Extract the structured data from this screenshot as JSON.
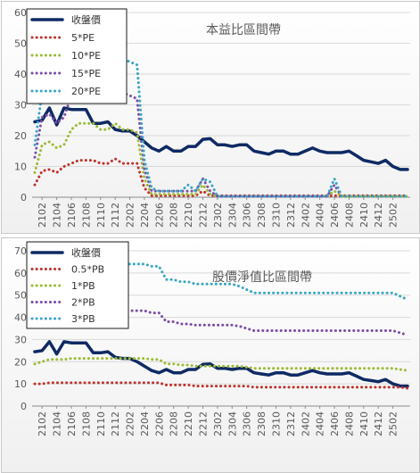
{
  "chart_data": [
    {
      "type": "line",
      "title": "本益比區間帶",
      "xlabel": "",
      "ylabel": "",
      "ylim": [
        0,
        60
      ],
      "ytick_labels": [
        "0",
        "10",
        "20",
        "30",
        "40",
        "50",
        "60"
      ],
      "xtick_labels": [
        "2102",
        "2104",
        "2106",
        "2108",
        "2110",
        "2112",
        "2202",
        "2204",
        "2206",
        "2208",
        "2210",
        "2212",
        "2302",
        "2304",
        "2306",
        "2308",
        "2310",
        "2312",
        "2402",
        "2404",
        "2406",
        "2408",
        "2410",
        "2412",
        "2502"
      ],
      "grid": true,
      "legend_position": "top-left",
      "series": [
        {
          "name": "收盤價",
          "color": "#0f2a64",
          "style": "solid",
          "values": [
            24.5,
            25,
            29,
            23.5,
            29,
            28.5,
            28.5,
            28.5,
            24,
            24,
            24.5,
            22,
            21.5,
            21.5,
            20,
            18,
            16,
            15,
            16.5,
            15,
            15,
            16.5,
            16.5,
            18.8,
            19,
            17,
            17,
            16.5,
            17,
            17,
            15,
            14.5,
            14,
            15,
            15,
            14,
            14,
            15,
            16,
            15,
            14.5,
            14.5,
            14.5,
            15,
            13.5,
            12,
            11.5,
            11,
            12,
            10,
            9,
            9
          ]
        },
        {
          "name": "5*PE",
          "color": "#c0322d",
          "style": "dotted",
          "values": [
            4,
            8.5,
            9,
            8,
            10,
            11,
            12,
            12,
            12,
            11,
            11,
            12.5,
            11,
            11,
            11,
            3,
            0.5,
            0.5,
            0.5,
            0.5,
            0.5,
            0.5,
            0.5,
            2,
            0.5,
            0.5,
            0.5,
            0.5,
            0.5,
            0.5,
            0.5,
            0.5,
            0.5,
            0.5,
            0.5,
            0.5,
            0.5,
            0.5,
            0.5,
            0.5,
            0.5,
            0.5,
            0.5,
            0.5,
            0.5,
            0.5,
            0.5,
            0.5,
            0.5,
            0.5,
            0.5,
            0.5
          ]
        },
        {
          "name": "10*PE",
          "color": "#9bbb34",
          "style": "dotted",
          "values": [
            8,
            17,
            18,
            16,
            17,
            22,
            24,
            24,
            24,
            22,
            22,
            24,
            22,
            22,
            21,
            6,
            1,
            1,
            1,
            1,
            1,
            1,
            1,
            4,
            1,
            0.3,
            0.3,
            0.3,
            0.3,
            0.3,
            0.3,
            0.3,
            0.3,
            0.3,
            0.3,
            0.3,
            0.3,
            0.3,
            0.3,
            0.3,
            0.3,
            2,
            0.3,
            0.3,
            0.3,
            0.3,
            0.3,
            0.3,
            0.3,
            0.3,
            0.3,
            0.3
          ]
        },
        {
          "name": "15*PE",
          "color": "#7b4fa8",
          "style": "dotted",
          "values": [
            13,
            26,
            27,
            24,
            26,
            33,
            36,
            36,
            36,
            33,
            33,
            36,
            34,
            33,
            32,
            9,
            2,
            2,
            2,
            2,
            2,
            2,
            2,
            6,
            2,
            0.3,
            0.3,
            0.3,
            0.3,
            0.3,
            0.3,
            0.3,
            0.3,
            0.3,
            0.3,
            0.3,
            0.3,
            0.3,
            0.3,
            0.3,
            0.3,
            4,
            0.3,
            0.3,
            0.3,
            0.3,
            0.3,
            0.3,
            0.3,
            0.3,
            0.3,
            0.3
          ]
        },
        {
          "name": "20*PE",
          "color": "#3aa6c4",
          "style": "dotted",
          "values": [
            17,
            34,
            36,
            32,
            35,
            44,
            48,
            48,
            48,
            44,
            44,
            48,
            45,
            44,
            43,
            12,
            3,
            2,
            2,
            2,
            2,
            4,
            2,
            6,
            5,
            0.3,
            0.3,
            0.3,
            0.3,
            0.3,
            0.3,
            0.3,
            0.3,
            0.3,
            0.3,
            0.3,
            0.3,
            0.3,
            0.3,
            0.3,
            0.3,
            6,
            0.3,
            0.3,
            0.3,
            0.3,
            0.3,
            0.3,
            0.3,
            0.3,
            0.3,
            0.3
          ]
        }
      ]
    },
    {
      "type": "line",
      "title": "股價淨值比區間帶",
      "xlabel": "",
      "ylabel": "",
      "ylim": [
        0,
        70
      ],
      "ytick_labels": [
        "0",
        "10",
        "20",
        "30",
        "40",
        "50",
        "60",
        "70"
      ],
      "xtick_labels": [
        "2102",
        "2104",
        "2106",
        "2108",
        "2110",
        "2112",
        "2202",
        "2204",
        "2206",
        "2208",
        "2210",
        "2212",
        "2302",
        "2304",
        "2306",
        "2308",
        "2310",
        "2312",
        "2402",
        "2404",
        "2406",
        "2408",
        "2410",
        "2412",
        "2502"
      ],
      "grid": true,
      "legend_position": "top-left",
      "series": [
        {
          "name": "收盤價",
          "color": "#0f2a64",
          "style": "solid",
          "values": [
            24.5,
            25,
            29,
            23.5,
            29,
            28.5,
            28.5,
            28.5,
            24,
            24,
            24.5,
            22,
            21.5,
            21.5,
            20,
            18,
            16,
            15,
            16.5,
            15,
            15,
            16.5,
            16.5,
            18.8,
            19,
            17,
            17,
            16.5,
            17,
            17,
            15,
            14.5,
            14,
            15,
            15,
            14,
            14,
            15,
            16,
            15,
            14.5,
            14.5,
            14.5,
            15,
            13.5,
            12,
            11.5,
            11,
            12,
            10,
            9,
            9
          ]
        },
        {
          "name": "0.5*PB",
          "color": "#c0322d",
          "style": "dotted",
          "values": [
            10,
            10,
            10.5,
            10.5,
            10.5,
            10.5,
            10.5,
            10.5,
            10.5,
            10.5,
            10.5,
            10.5,
            10.5,
            10.5,
            10.5,
            10.5,
            10.5,
            10.5,
            9.5,
            9.5,
            9.5,
            9.5,
            9,
            9,
            9,
            9,
            9,
            9,
            9,
            9,
            8.5,
            8.5,
            8.5,
            8.5,
            8.5,
            8.5,
            8.5,
            8.5,
            8.5,
            8.5,
            8.5,
            8.5,
            8.5,
            8.5,
            8.5,
            8.5,
            8.5,
            8.5,
            8.5,
            8.5,
            8.5,
            8
          ]
        },
        {
          "name": "1*PB",
          "color": "#9bbb34",
          "style": "dotted",
          "values": [
            19,
            20,
            21,
            21,
            21,
            21.5,
            21.5,
            21.5,
            21.5,
            21.5,
            21.5,
            21.5,
            21.5,
            21.5,
            21.5,
            21.5,
            21,
            21,
            19,
            19,
            18.5,
            18.5,
            18,
            18,
            18,
            18,
            18,
            18,
            18,
            17.5,
            17,
            17,
            17,
            17,
            17,
            17,
            17,
            17,
            17,
            17,
            17,
            17,
            17,
            17,
            17,
            17,
            17,
            17,
            17,
            17,
            16.5,
            16
          ]
        },
        {
          "name": "2*PB",
          "color": "#7b4fa8",
          "style": "dotted",
          "values": [
            38,
            40,
            42,
            42,
            42,
            43,
            43,
            43,
            43,
            43,
            43,
            43,
            43,
            43,
            43,
            43,
            42,
            42,
            38,
            38,
            37,
            37,
            36.5,
            36.5,
            36.5,
            36.5,
            36.5,
            36.5,
            36,
            35,
            34,
            34,
            34,
            34,
            34,
            34,
            34,
            34,
            34,
            34,
            34,
            34,
            34,
            34,
            34,
            34,
            34,
            34,
            34,
            34,
            33,
            32
          ]
        },
        {
          "name": "3*PB",
          "color": "#3aa6c4",
          "style": "dotted",
          "values": [
            57,
            60,
            63,
            63,
            63,
            64,
            64,
            64,
            64,
            64,
            64,
            64,
            64,
            64,
            64,
            64,
            63,
            63,
            57,
            57,
            56,
            56,
            55,
            55,
            55,
            55,
            55,
            55,
            54,
            52.5,
            51,
            51,
            51,
            51,
            51,
            51,
            51,
            51,
            51,
            51,
            51,
            51,
            51,
            51,
            51,
            51,
            51,
            51,
            51,
            51,
            49.5,
            48
          ]
        }
      ]
    }
  ]
}
